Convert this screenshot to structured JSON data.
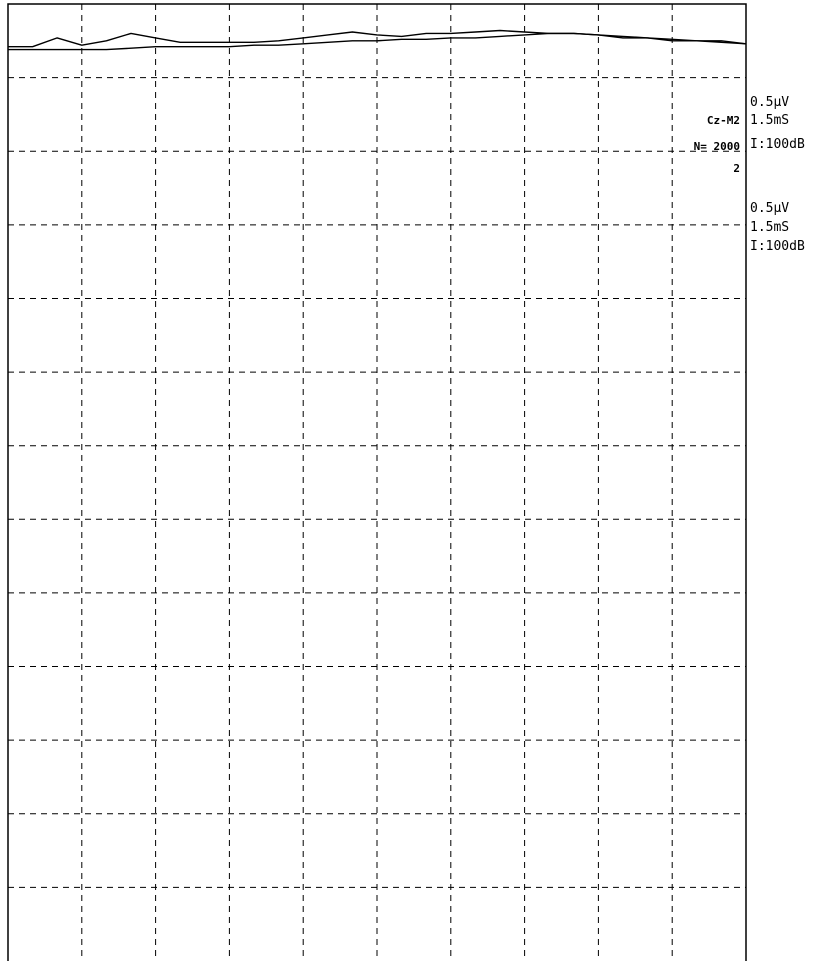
{
  "chart_data": {
    "type": "line",
    "title": "",
    "xlabel": "",
    "ylabel": "",
    "grid": true,
    "grid_divisions": {
      "x": 10,
      "y": 13
    },
    "xlim": [
      0,
      15
    ],
    "ylim": [
      0,
      6.5
    ],
    "channel_labels": [
      {
        "scale": "0.5µV",
        "time": "1.5mS",
        "intensity": "I:100dB"
      },
      {
        "scale": "0.5µV",
        "time": "1.5mS",
        "intensity": "I:100dB"
      }
    ],
    "trace_labels": {
      "channel": "Cz-M2",
      "sweeps": "N= 2000",
      "index": "2"
    },
    "x": [
      0,
      0.5,
      1,
      1.5,
      2,
      2.5,
      3,
      3.5,
      4,
      4.5,
      5,
      5.5,
      6,
      6.5,
      7,
      7.5,
      8,
      8.5,
      9,
      9.5,
      10,
      10.5,
      11,
      11.5,
      12,
      12.5,
      13,
      13.5,
      14,
      14.5,
      15
    ],
    "series": [
      {
        "values": [
          6.21,
          6.21,
          6.27,
          6.22,
          6.25,
          6.3,
          6.27,
          6.24,
          6.24,
          6.24,
          6.24,
          6.25,
          6.27,
          6.29,
          6.31,
          6.29,
          6.28,
          6.3,
          6.3,
          6.31,
          6.32,
          6.31,
          6.3,
          6.3,
          6.29,
          6.27,
          6.27,
          6.25,
          6.25,
          6.25,
          6.23
        ]
      },
      {
        "values": [
          6.19,
          6.19,
          6.19,
          6.19,
          6.19,
          6.2,
          6.21,
          6.21,
          6.21,
          6.21,
          6.22,
          6.22,
          6.23,
          6.24,
          6.25,
          6.25,
          6.26,
          6.26,
          6.27,
          6.27,
          6.28,
          6.29,
          6.3,
          6.3,
          6.29,
          6.28,
          6.27,
          6.26,
          6.25,
          6.24,
          6.23
        ]
      }
    ],
    "colors": {
      "line": "#000000",
      "grid": "#000000",
      "background": "#ffffff"
    }
  }
}
